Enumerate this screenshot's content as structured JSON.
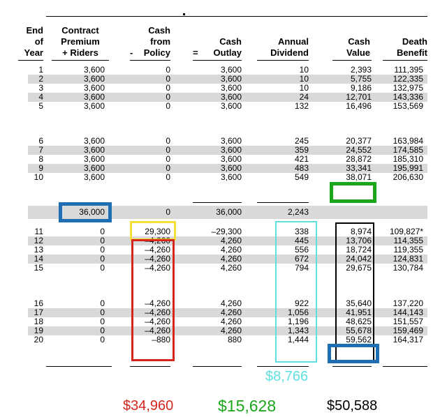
{
  "headers": {
    "year": [
      "End",
      "of",
      "Year"
    ],
    "premium": [
      "Contract",
      "Premium",
      "+ Riders"
    ],
    "cash_from": [
      "Cash",
      "from",
      "Policy"
    ],
    "outlay": [
      "Cash",
      "Outlay"
    ],
    "dividend": [
      "Annual",
      "Dividend"
    ],
    "cash_value": [
      "Cash",
      "Value"
    ],
    "death": [
      "Death",
      "Benefit"
    ],
    "minus_op": "-",
    "equals_op": "="
  },
  "rows_a": [
    [
      "1",
      "3,600",
      "0",
      "3,600",
      "10",
      "2,393",
      "111,395"
    ],
    [
      "2",
      "3,600",
      "0",
      "3,600",
      "10",
      "5,755",
      "122,335"
    ],
    [
      "3",
      "3,600",
      "0",
      "3,600",
      "10",
      "9,186",
      "132,975"
    ],
    [
      "4",
      "3,600",
      "0",
      "3,600",
      "24",
      "12,701",
      "143,336"
    ],
    [
      "5",
      "3,600",
      "0",
      "3,600",
      "132",
      "16,496",
      "153,569"
    ]
  ],
  "rows_b": [
    [
      "6",
      "3,600",
      "0",
      "3,600",
      "245",
      "20,377",
      "163,984"
    ],
    [
      "7",
      "3,600",
      "0",
      "3,600",
      "359",
      "24,552",
      "174,585"
    ],
    [
      "8",
      "3,600",
      "0",
      "3,600",
      "421",
      "28,872",
      "185,310"
    ],
    [
      "9",
      "3,600",
      "0",
      "3,600",
      "483",
      "33,341",
      "195,991"
    ],
    [
      "10",
      "3,600",
      "0",
      "3,600",
      "549",
      "38,071",
      "206,630"
    ]
  ],
  "subtotal": [
    "",
    "36,000",
    "0",
    "36,000",
    "2,243",
    "",
    ""
  ],
  "rows_c": [
    [
      "11",
      "0",
      "29,300",
      "–29,300",
      "338",
      "8,974",
      "109,827*"
    ],
    [
      "12",
      "0",
      "–4,260",
      "4,260",
      "445",
      "13,706",
      "114,355"
    ],
    [
      "13",
      "0",
      "–4,260",
      "4,260",
      "556",
      "18,724",
      "119,355"
    ],
    [
      "14",
      "0",
      "–4,260",
      "4,260",
      "672",
      "24,042",
      "124,831"
    ],
    [
      "15",
      "0",
      "–4,260",
      "4,260",
      "794",
      "29,675",
      "130,784"
    ]
  ],
  "rows_d": [
    [
      "16",
      "0",
      "–4,260",
      "4,260",
      "922",
      "35,640",
      "137,220"
    ],
    [
      "17",
      "0",
      "–4,260",
      "4,260",
      "1,056",
      "41,951",
      "144,143"
    ],
    [
      "18",
      "0",
      "–4,260",
      "4,260",
      "1,196",
      "48,625",
      "151,557"
    ],
    [
      "19",
      "0",
      "–4,260",
      "4,260",
      "1,343",
      "55,678",
      "159,469"
    ],
    [
      "20",
      "0",
      "–880",
      "880",
      "1,444",
      "59,562",
      "164,317"
    ]
  ],
  "annotations": {
    "dividend_total": "$8,766",
    "cash_total": "$34,960",
    "value_total": "$15,628",
    "black_total": "$50,588"
  },
  "colors": {
    "row_shade": "#d9d9d9",
    "blue": "#1f6eb4",
    "green": "#1aa51a",
    "yellow": "#f5e03a",
    "red": "#d4261c",
    "cyan": "#5ee0e0",
    "black": "#000000"
  }
}
